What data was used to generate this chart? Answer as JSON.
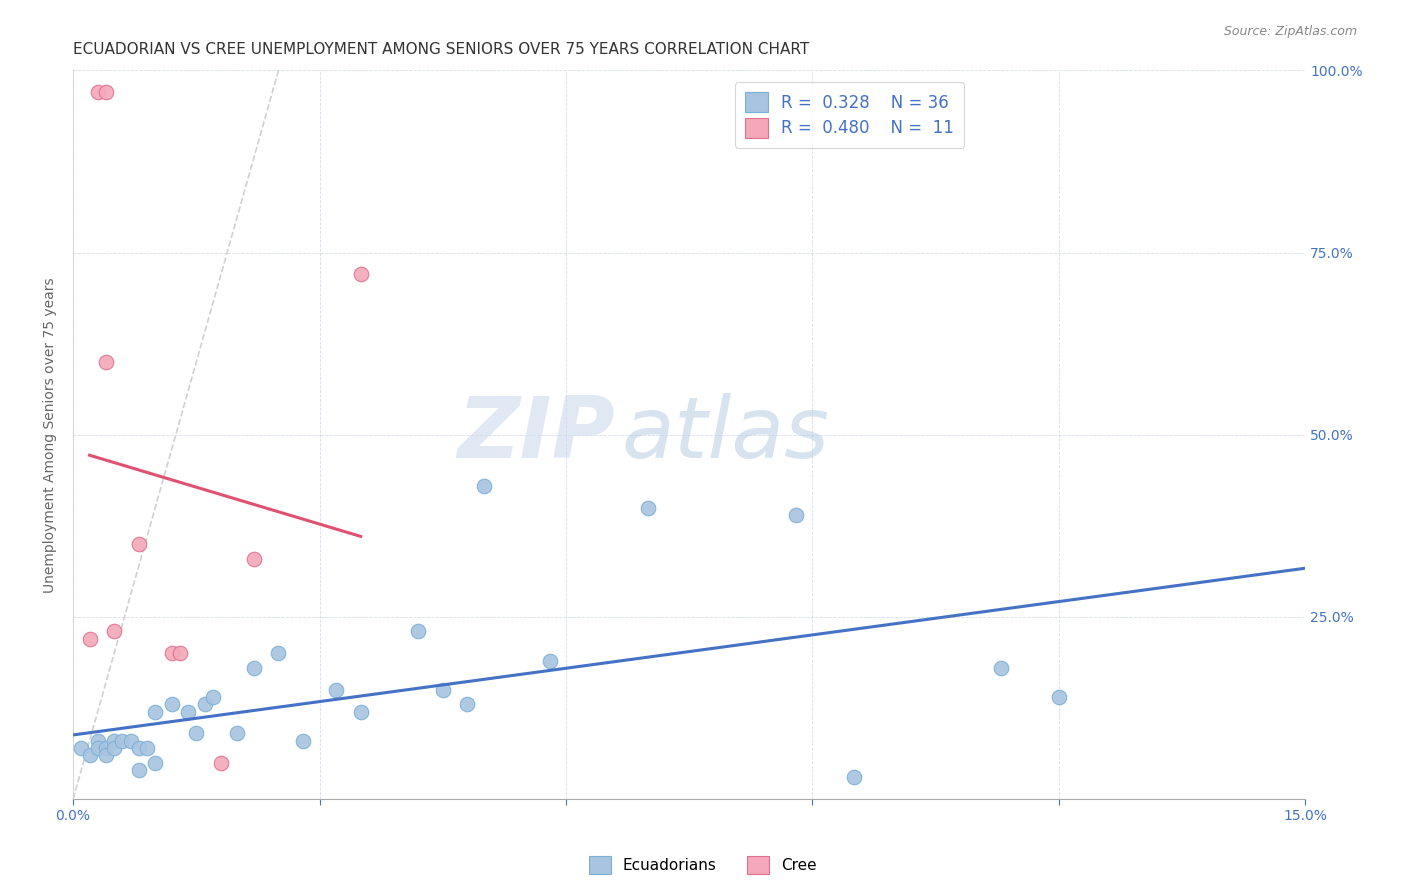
{
  "title": "ECUADORIAN VS CREE UNEMPLOYMENT AMONG SENIORS OVER 75 YEARS CORRELATION CHART",
  "source": "Source: ZipAtlas.com",
  "ylabel": "Unemployment Among Seniors over 75 years",
  "xlim": [
    0.0,
    0.15
  ],
  "ylim": [
    0.0,
    1.0
  ],
  "ecuadorian_x": [
    0.001,
    0.002,
    0.003,
    0.003,
    0.004,
    0.004,
    0.005,
    0.005,
    0.006,
    0.007,
    0.008,
    0.008,
    0.009,
    0.01,
    0.01,
    0.012,
    0.014,
    0.015,
    0.016,
    0.017,
    0.02,
    0.022,
    0.025,
    0.028,
    0.032,
    0.035,
    0.042,
    0.045,
    0.048,
    0.05,
    0.058,
    0.07,
    0.088,
    0.095,
    0.113,
    0.12
  ],
  "ecuadorian_y": [
    0.07,
    0.06,
    0.08,
    0.07,
    0.07,
    0.06,
    0.08,
    0.07,
    0.08,
    0.08,
    0.07,
    0.04,
    0.07,
    0.12,
    0.05,
    0.13,
    0.12,
    0.09,
    0.13,
    0.14,
    0.09,
    0.18,
    0.2,
    0.08,
    0.15,
    0.12,
    0.23,
    0.15,
    0.13,
    0.43,
    0.19,
    0.4,
    0.39,
    0.03,
    0.18,
    0.14
  ],
  "cree_x": [
    0.002,
    0.003,
    0.004,
    0.004,
    0.005,
    0.008,
    0.012,
    0.013,
    0.018,
    0.022,
    0.035
  ],
  "cree_y": [
    0.22,
    0.97,
    0.97,
    0.6,
    0.23,
    0.35,
    0.2,
    0.2,
    0.05,
    0.33,
    0.72
  ],
  "ecuadorian_color": "#a8c4e0",
  "ecuadorian_edge": "#7bafd4",
  "cree_color": "#f4a8b8",
  "cree_edge": "#e07090",
  "trendline_ecuadorian_color": "#4472c4",
  "trendline_cree_color": "#e05070",
  "trendline_dash_color": "#c8c8c8",
  "legend_R_ecuadorian": "0.328",
  "legend_N_ecuadorian": "36",
  "legend_R_cree": "0.480",
  "legend_N_cree": "11",
  "watermark_zip": "ZIP",
  "watermark_atlas": "atlas",
  "marker_size": 110,
  "title_fontsize": 11,
  "axis_label_fontsize": 10,
  "tick_fontsize": 10
}
